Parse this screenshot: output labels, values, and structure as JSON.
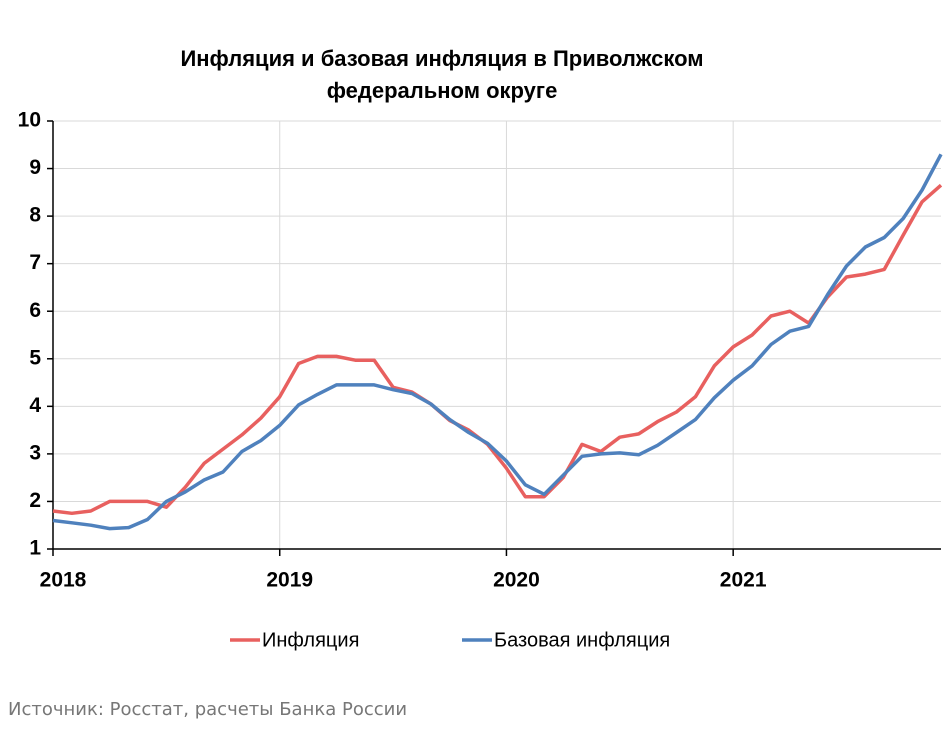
{
  "chart_data": {
    "type": "line",
    "title": [
      "Инфляция и базовая инфляция в Приволжском",
      "федеральном округе"
    ],
    "categories": [
      "2018",
      null,
      null,
      null,
      null,
      null,
      null,
      null,
      null,
      null,
      null,
      null,
      "2019",
      null,
      null,
      null,
      null,
      null,
      null,
      null,
      null,
      null,
      null,
      null,
      "2020",
      null,
      null,
      null,
      null,
      null,
      null,
      null,
      null,
      null,
      null,
      null,
      "2021",
      null,
      null,
      null,
      null,
      null,
      null,
      null,
      null,
      null,
      null,
      null
    ],
    "series": [
      {
        "name": "Инфляция",
        "color": "#e8605f",
        "values": [
          1.8,
          1.75,
          1.8,
          2.0,
          2.0,
          2.0,
          1.88,
          2.3,
          2.8,
          3.1,
          3.4,
          3.75,
          4.2,
          4.9,
          5.05,
          5.05,
          4.97,
          4.97,
          4.4,
          4.3,
          4.05,
          3.7,
          3.5,
          3.2,
          2.7,
          2.1,
          2.1,
          2.5,
          3.2,
          3.05,
          3.35,
          3.42,
          3.68,
          3.88,
          4.2,
          4.85,
          5.25,
          5.5,
          5.9,
          6.0,
          5.75,
          6.3,
          6.72,
          6.78,
          6.88,
          7.6,
          8.3,
          8.65
        ]
      },
      {
        "name": "Базовая инфляция",
        "color": "#4f81bd",
        "values": [
          1.6,
          1.55,
          1.5,
          1.43,
          1.45,
          1.62,
          2.0,
          2.2,
          2.45,
          2.62,
          3.05,
          3.28,
          3.6,
          4.03,
          4.25,
          4.45,
          4.45,
          4.45,
          4.35,
          4.27,
          4.05,
          3.72,
          3.45,
          3.22,
          2.85,
          2.35,
          2.15,
          2.55,
          2.95,
          3.0,
          3.02,
          2.98,
          3.18,
          3.45,
          3.72,
          4.18,
          4.55,
          4.85,
          5.3,
          5.58,
          5.68,
          6.35,
          6.95,
          7.35,
          7.55,
          7.95,
          8.55,
          9.3
        ]
      }
    ],
    "ylim": [
      1,
      10
    ],
    "yticks": [
      1,
      2,
      3,
      4,
      5,
      6,
      7,
      8,
      9,
      10
    ],
    "grid": true,
    "legend": "bottom",
    "source": "Источник: Росстат, расчеты Банка России"
  }
}
